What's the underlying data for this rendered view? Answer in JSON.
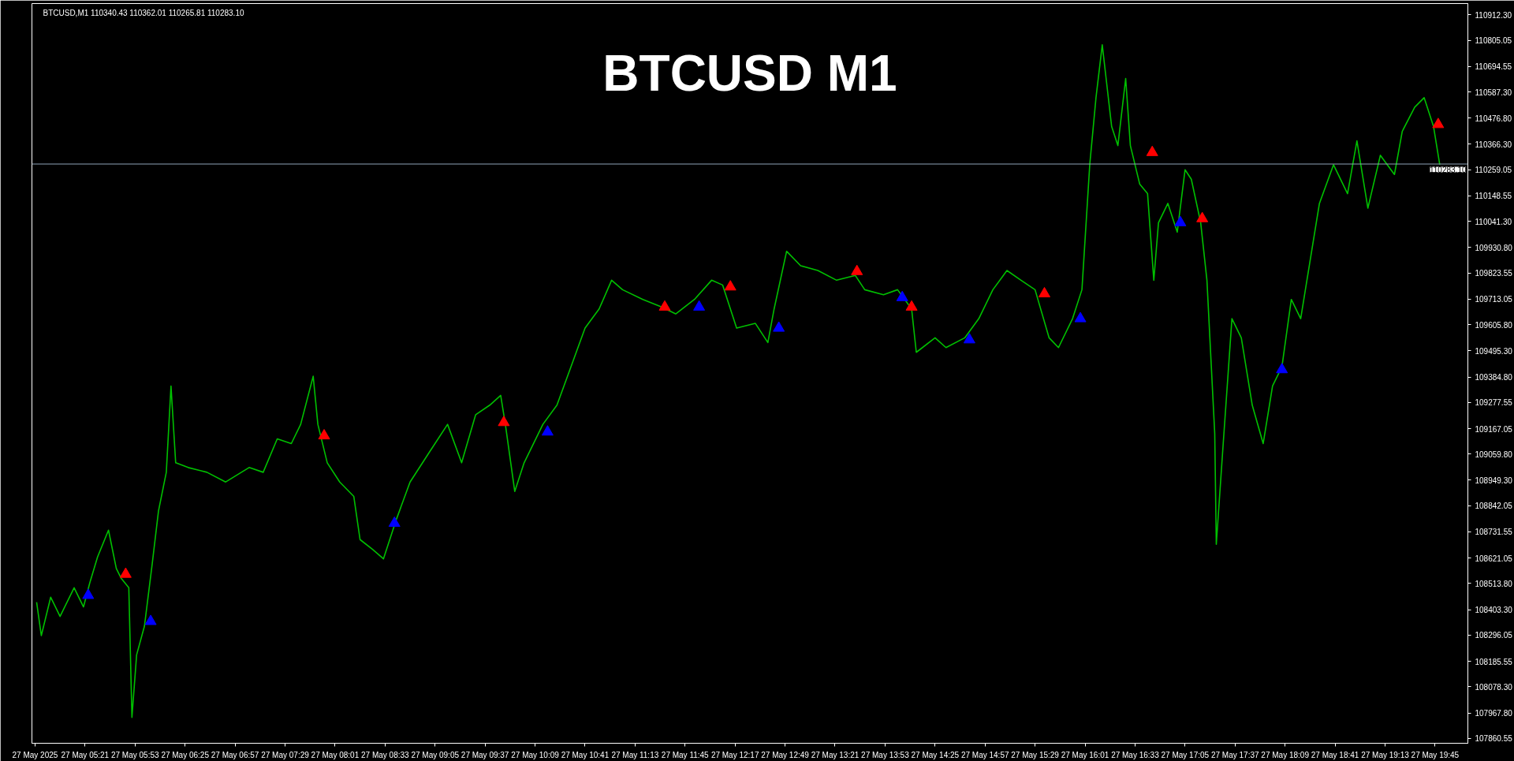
{
  "chart_data": {
    "type": "line",
    "title": "BTCUSD M1",
    "annotations": [
      "BTCUSD,M1  110340.43 110362.01 110265.81 110283.10"
    ],
    "xlim": [
      "2025-05-27T04:47",
      "2025-05-27T20:06"
    ],
    "ylim": [
      107840,
      110960
    ],
    "xticks": [
      {
        "value": "2025-05-27T04:49",
        "label": "27 May 2025"
      },
      {
        "value": "2025-05-27T05:21",
        "label": "27 May 05:21"
      },
      {
        "value": "2025-05-27T05:53",
        "label": "27 May 05:53"
      },
      {
        "value": "2025-05-27T06:25",
        "label": "27 May 06:25"
      },
      {
        "value": "2025-05-27T06:57",
        "label": "27 May 06:57"
      },
      {
        "value": "2025-05-27T07:29",
        "label": "27 May 07:29"
      },
      {
        "value": "2025-05-27T08:01",
        "label": "27 May 08:01"
      },
      {
        "value": "2025-05-27T08:33",
        "label": "27 May 08:33"
      },
      {
        "value": "2025-05-27T09:05",
        "label": "27 May 09:05"
      },
      {
        "value": "2025-05-27T09:37",
        "label": "27 May 09:37"
      },
      {
        "value": "2025-05-27T10:09",
        "label": "27 May 10:09"
      },
      {
        "value": "2025-05-27T10:41",
        "label": "27 May 10:41"
      },
      {
        "value": "2025-05-27T11:13",
        "label": "27 May 11:13"
      },
      {
        "value": "2025-05-27T11:45",
        "label": "27 May 11:45"
      },
      {
        "value": "2025-05-27T12:17",
        "label": "27 May 12:17"
      },
      {
        "value": "2025-05-27T12:49",
        "label": "27 May 12:49"
      },
      {
        "value": "2025-05-27T13:21",
        "label": "27 May 13:21"
      },
      {
        "value": "2025-05-27T13:53",
        "label": "27 May 13:53"
      },
      {
        "value": "2025-05-27T14:25",
        "label": "27 May 14:25"
      },
      {
        "value": "2025-05-27T14:57",
        "label": "27 May 14:57"
      },
      {
        "value": "2025-05-27T15:29",
        "label": "27 May 15:29"
      },
      {
        "value": "2025-05-27T16:01",
        "label": "27 May 16:01"
      },
      {
        "value": "2025-05-27T16:33",
        "label": "27 May 16:33"
      },
      {
        "value": "2025-05-27T17:05",
        "label": "27 May 17:05"
      },
      {
        "value": "2025-05-27T17:37",
        "label": "27 May 17:37"
      },
      {
        "value": "2025-05-27T18:09",
        "label": "27 May 18:09"
      },
      {
        "value": "2025-05-27T18:41",
        "label": "27 May 18:41"
      },
      {
        "value": "2025-05-27T19:13",
        "label": "27 May 19:13"
      },
      {
        "value": "2025-05-27T19:45",
        "label": "27 May 19:45"
      }
    ],
    "yticks": [
      {
        "value": 110912.3,
        "label": "110912.30"
      },
      {
        "value": 110805.05,
        "label": "110805.05"
      },
      {
        "value": 110694.55,
        "label": "110694.55"
      },
      {
        "value": 110587.3,
        "label": "110587.30"
      },
      {
        "value": 110476.8,
        "label": "110476.80"
      },
      {
        "value": 110366.3,
        "label": "110366.30"
      },
      {
        "value": 110259.05,
        "label": "110259.05"
      },
      {
        "value": 110148.55,
        "label": "110148.55"
      },
      {
        "value": 110041.3,
        "label": "110041.30"
      },
      {
        "value": 109930.8,
        "label": "109930.80"
      },
      {
        "value": 109823.55,
        "label": "109823.55"
      },
      {
        "value": 109713.05,
        "label": "109713.05"
      },
      {
        "value": 109605.8,
        "label": "109605.80"
      },
      {
        "value": 109495.3,
        "label": "109495.30"
      },
      {
        "value": 109384.8,
        "label": "109384.80"
      },
      {
        "value": 109277.55,
        "label": "109277.55"
      },
      {
        "value": 109167.05,
        "label": "109167.05"
      },
      {
        "value": 109059.8,
        "label": "109059.80"
      },
      {
        "value": 108949.3,
        "label": "108949.30"
      },
      {
        "value": 108842.05,
        "label": "108842.05"
      },
      {
        "value": 108731.55,
        "label": "108731.55"
      },
      {
        "value": 108621.05,
        "label": "108621.05"
      },
      {
        "value": 108513.8,
        "label": "108513.80"
      },
      {
        "value": 108403.3,
        "label": "108403.30"
      },
      {
        "value": 108296.05,
        "label": "108296.05"
      },
      {
        "value": 108185.55,
        "label": "108185.55"
      },
      {
        "value": 108078.3,
        "label": "108078.30"
      },
      {
        "value": 107967.8,
        "label": "107967.80"
      },
      {
        "value": 107860.55,
        "label": "107860.55"
      }
    ],
    "ref_lines": [
      {
        "axis": "y",
        "value": 110283.1,
        "label": "110283.10",
        "color": "#8fa3b8"
      }
    ],
    "grid": false,
    "series": [
      {
        "color": "#00c000",
        "marker": "none",
        "x": [
          "2025-05-27T04:50",
          "2025-05-27T04:53",
          "2025-05-27T04:59",
          "2025-05-27T05:05",
          "2025-05-27T05:14",
          "2025-05-27T05:20",
          "2025-05-27T05:24",
          "2025-05-27T05:29",
          "2025-05-27T05:36",
          "2025-05-27T05:41",
          "2025-05-27T05:44",
          "2025-05-27T05:49",
          "2025-05-27T05:51",
          "2025-05-27T05:54",
          "2025-05-27T05:59",
          "2025-05-27T06:04",
          "2025-05-27T06:08",
          "2025-05-27T06:13",
          "2025-05-27T06:16",
          "2025-05-27T06:19",
          "2025-05-27T06:27",
          "2025-05-27T06:39",
          "2025-05-27T06:51",
          "2025-05-27T07:06",
          "2025-05-27T07:15",
          "2025-05-27T07:24",
          "2025-05-27T07:33",
          "2025-05-27T07:39",
          "2025-05-27T07:47",
          "2025-05-27T07:50",
          "2025-05-27T07:56",
          "2025-05-27T08:04",
          "2025-05-27T08:13",
          "2025-05-27T08:17",
          "2025-05-27T08:25",
          "2025-05-27T08:32",
          "2025-05-27T08:40",
          "2025-05-27T08:49",
          "2025-05-27T09:01",
          "2025-05-27T09:13",
          "2025-05-27T09:22",
          "2025-05-27T09:31",
          "2025-05-27T09:40",
          "2025-05-27T09:47",
          "2025-05-27T09:50",
          "2025-05-27T09:56",
          "2025-05-27T10:02",
          "2025-05-27T10:14",
          "2025-05-27T10:23",
          "2025-05-27T10:32",
          "2025-05-27T10:41",
          "2025-05-27T10:50",
          "2025-05-27T10:58",
          "2025-05-27T11:05",
          "2025-05-27T11:18",
          "2025-05-27T11:30",
          "2025-05-27T11:39",
          "2025-05-27T11:51",
          "2025-05-27T12:02",
          "2025-05-27T12:09",
          "2025-05-27T12:18",
          "2025-05-27T12:30",
          "2025-05-27T12:38",
          "2025-05-27T12:42",
          "2025-05-27T12:50",
          "2025-05-27T12:59",
          "2025-05-27T13:10",
          "2025-05-27T13:22",
          "2025-05-27T13:34",
          "2025-05-27T13:40",
          "2025-05-27T13:52",
          "2025-05-27T14:01",
          "2025-05-27T14:10",
          "2025-05-27T14:13",
          "2025-05-27T14:25",
          "2025-05-27T14:32",
          "2025-05-27T14:44",
          "2025-05-27T14:53",
          "2025-05-27T15:02",
          "2025-05-27T15:11",
          "2025-05-27T15:20",
          "2025-05-27T15:29",
          "2025-05-27T15:38",
          "2025-05-27T15:44",
          "2025-05-27T15:53",
          "2025-05-27T15:59",
          "2025-05-27T16:04",
          "2025-05-27T16:08",
          "2025-05-27T16:12",
          "2025-05-27T16:18",
          "2025-05-27T16:22",
          "2025-05-27T16:27",
          "2025-05-27T16:30",
          "2025-05-27T16:36",
          "2025-05-27T16:41",
          "2025-05-27T16:45",
          "2025-05-27T16:48",
          "2025-05-27T16:54",
          "2025-05-27T17:00",
          "2025-05-27T17:05",
          "2025-05-27T17:09",
          "2025-05-27T17:15",
          "2025-05-27T17:19",
          "2025-05-27T17:24",
          "2025-05-27T17:25",
          "2025-05-27T17:29",
          "2025-05-27T17:35",
          "2025-05-27T17:41",
          "2025-05-27T17:48",
          "2025-05-27T17:55",
          "2025-05-27T18:01",
          "2025-05-27T18:07",
          "2025-05-27T18:13",
          "2025-05-27T18:19",
          "2025-05-27T18:25",
          "2025-05-27T18:31",
          "2025-05-27T18:40",
          "2025-05-27T18:49",
          "2025-05-27T18:55",
          "2025-05-27T19:02",
          "2025-05-27T19:10",
          "2025-05-27T19:19",
          "2025-05-27T19:24",
          "2025-05-27T19:32",
          "2025-05-27T19:38",
          "2025-05-27T19:44",
          "2025-05-27T19:48"
        ],
        "values": [
          108435,
          108294,
          108456,
          108375,
          108496,
          108415,
          108516,
          108626,
          108739,
          108577,
          108537,
          108496,
          107949,
          108213,
          108334,
          108598,
          108820,
          108983,
          109347,
          109023,
          109003,
          108983,
          108942,
          109003,
          108983,
          109124,
          109104,
          109185,
          109388,
          109185,
          109023,
          108942,
          108881,
          108699,
          108658,
          108618,
          108780,
          108942,
          109064,
          109185,
          109023,
          109226,
          109266,
          109307,
          109185,
          108902,
          109023,
          109185,
          109266,
          109428,
          109591,
          109672,
          109793,
          109753,
          109712,
          109680,
          109651,
          109712,
          109793,
          109773,
          109591,
          109611,
          109530,
          109672,
          109915,
          109854,
          109834,
          109793,
          109813,
          109753,
          109732,
          109753,
          109672,
          109489,
          109550,
          109509,
          109550,
          109631,
          109753,
          109834,
          109793,
          109753,
          109550,
          109509,
          109631,
          109753,
          110280,
          110563,
          110786,
          110442,
          110361,
          110644,
          110361,
          110198,
          110158,
          109793,
          110036,
          110117,
          109996,
          110259,
          110219,
          110036,
          109793,
          109145,
          108679,
          109064,
          109631,
          109550,
          109266,
          109104,
          109347,
          109428,
          109712,
          109631,
          109874,
          110117,
          110280,
          110158,
          110381,
          110097,
          110320,
          110239,
          110421,
          110523,
          110563,
          110442,
          110280
        ]
      },
      {
        "type": "scatter",
        "color": "#0000ff",
        "marker": "triangle",
        "x": [
          "2025-05-27T05:23",
          "2025-05-27T06:03",
          "2025-05-27T08:39",
          "2025-05-27T10:17",
          "2025-05-27T11:54",
          "2025-05-27T12:45",
          "2025-05-27T14:04",
          "2025-05-27T14:47",
          "2025-05-27T15:58",
          "2025-05-27T17:02",
          "2025-05-27T18:07"
        ],
        "values": [
          108464,
          108354,
          108768,
          109153,
          109680,
          109591,
          109720,
          109542,
          109631,
          110036,
          109416
        ]
      },
      {
        "type": "scatter",
        "color": "#ff0000",
        "marker": "triangle",
        "x": [
          "2025-05-27T05:47",
          "2025-05-27T07:54",
          "2025-05-27T09:49",
          "2025-05-27T11:32",
          "2025-05-27T12:14",
          "2025-05-27T13:35",
          "2025-05-27T14:10",
          "2025-05-27T15:35",
          "2025-05-27T16:44",
          "2025-05-27T17:16",
          "2025-05-27T19:47"
        ],
        "values": [
          108553,
          109137,
          109193,
          109680,
          109765,
          109830,
          109680,
          109736,
          110332,
          110053,
          110450
        ]
      }
    ]
  }
}
